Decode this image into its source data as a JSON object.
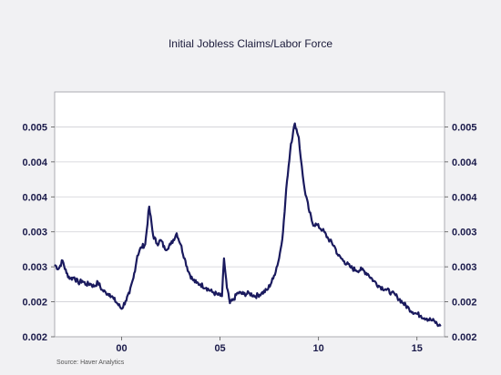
{
  "chart_data": {
    "type": "line",
    "title": "Initial Jobless Claims/Labor Force",
    "source": "Source:   Haver Analytics",
    "xlabel": "",
    "ylabel": "",
    "xlim": [
      1996.6,
      2016.4
    ],
    "ylim": [
      0.0015,
      0.005
    ],
    "grid": true,
    "legend": "none",
    "x_tick_labels": [
      {
        "x": 2000,
        "label": "00"
      },
      {
        "x": 2005,
        "label": "05"
      },
      {
        "x": 2010,
        "label": "10"
      },
      {
        "x": 2015,
        "label": "15"
      }
    ],
    "y_tick_labels": [
      {
        "y": 0.0015,
        "label": "0.002"
      },
      {
        "y": 0.002,
        "label": "0.002"
      },
      {
        "y": 0.0025,
        "label": "0.003"
      },
      {
        "y": 0.003,
        "label": "0.003"
      },
      {
        "y": 0.0035,
        "label": "0.004"
      },
      {
        "y": 0.004,
        "label": "0.004"
      },
      {
        "y": 0.0045,
        "label": "0.005"
      }
    ],
    "line_color": "#1a1a5e",
    "series": [
      {
        "x": [
          1996.6,
          1996.8,
          1997.0,
          1997.2,
          1997.4,
          1997.6,
          1997.8,
          1998.0,
          1998.2,
          1998.4,
          1998.6,
          1998.8,
          1999.0,
          1999.2,
          1999.4,
          1999.6,
          1999.8,
          2000.0,
          2000.2,
          2000.4,
          2000.6,
          2000.8,
          2001.0,
          2001.2,
          2001.4,
          2001.6,
          2001.8,
          2002.0,
          2002.2,
          2002.5,
          2002.8,
          2003.0,
          2003.2,
          2003.4,
          2003.6,
          2003.8,
          2004.0,
          2004.3,
          2004.6,
          2004.9,
          2005.1,
          2005.2,
          2005.35,
          2005.5,
          2005.7,
          2005.9,
          2006.2,
          2006.5,
          2006.8,
          2007.1,
          2007.4,
          2007.7,
          2008.0,
          2008.2,
          2008.4,
          2008.6,
          2008.8,
          2009.0,
          2009.1,
          2009.2,
          2009.3,
          2009.5,
          2009.7,
          2009.9,
          2010.2,
          2010.5,
          2010.8,
          2011.0,
          2011.3,
          2011.6,
          2011.9,
          2012.2,
          2012.5,
          2012.8,
          2013.1,
          2013.4,
          2013.7,
          2014.0,
          2014.3,
          2014.6,
          2014.9,
          2015.2,
          2015.5,
          2015.7,
          2015.9,
          2016.1,
          2016.2
        ],
        "y": [
          0.00253,
          0.00247,
          0.00259,
          0.00241,
          0.00233,
          0.00235,
          0.00227,
          0.0023,
          0.00225,
          0.00226,
          0.00222,
          0.00228,
          0.00217,
          0.00213,
          0.00211,
          0.00204,
          0.00197,
          0.0019,
          0.00201,
          0.00212,
          0.00234,
          0.00266,
          0.00278,
          0.00282,
          0.00336,
          0.00295,
          0.00283,
          0.00288,
          0.00275,
          0.00282,
          0.00298,
          0.00282,
          0.00262,
          0.00243,
          0.00232,
          0.00227,
          0.00225,
          0.0022,
          0.00214,
          0.0021,
          0.00208,
          0.00262,
          0.0022,
          0.00198,
          0.00204,
          0.00213,
          0.00211,
          0.00212,
          0.00208,
          0.00212,
          0.00217,
          0.00233,
          0.00262,
          0.003,
          0.00373,
          0.00426,
          0.00455,
          0.00435,
          0.00405,
          0.0038,
          0.0036,
          0.00333,
          0.00312,
          0.0031,
          0.00303,
          0.0029,
          0.0028,
          0.00266,
          0.00258,
          0.0025,
          0.00245,
          0.00246,
          0.0024,
          0.0023,
          0.00222,
          0.00218,
          0.00213,
          0.00207,
          0.00198,
          0.0019,
          0.00184,
          0.0018,
          0.00176,
          0.00174,
          0.00172,
          0.00166,
          0.00165
        ]
      }
    ]
  }
}
